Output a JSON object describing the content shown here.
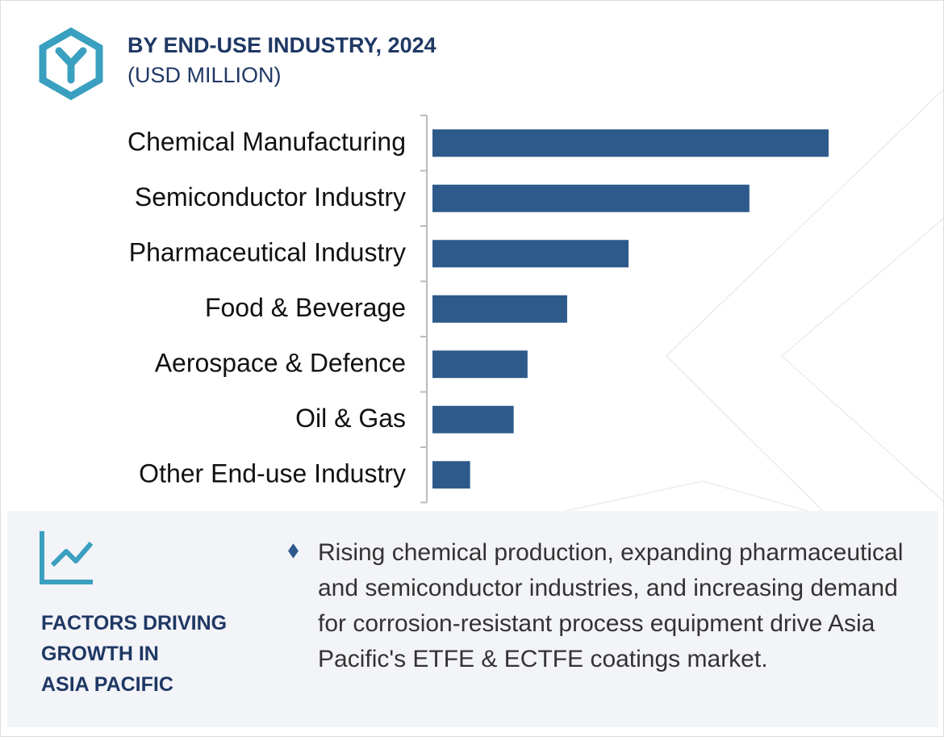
{
  "chart_data": {
    "type": "bar",
    "orientation": "horizontal",
    "title": "BY END-USE INDUSTRY, 2024",
    "subtitle": "(USD MILLION)",
    "categories": [
      "Chemical Manufacturing",
      "Semiconductor Industry",
      "Pharmaceutical Industry",
      "Food & Beverage",
      "Aerospace & Defence",
      "Oil & Gas",
      "Other End-use Industry"
    ],
    "values": [
      100,
      80,
      49.5,
      34,
      24,
      20.5,
      9.5
    ],
    "color": "#2d5a8a"
  },
  "factors": {
    "heading": [
      "FACTORS DRIVING",
      "GROWTH IN",
      "ASIA PACIFIC"
    ],
    "text": "Rising chemical production, expanding pharmaceutical and semiconductor industries, and increasing demand for corrosion-resistant process equipment drive Asia Pacific's ETFE & ECTFE coatings market."
  }
}
